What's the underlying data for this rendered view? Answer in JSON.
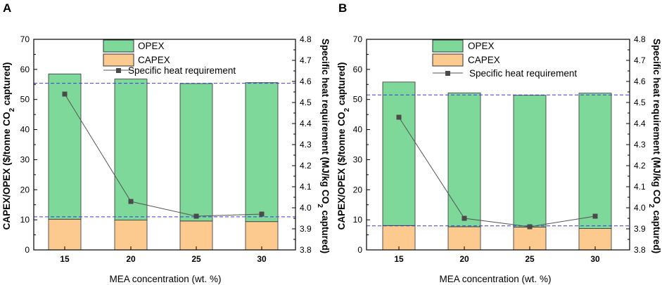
{
  "colors": {
    "opex": "#7dd89a",
    "capex": "#fcc98f",
    "bar_stroke": "#333333",
    "line": "#555555",
    "marker": "#4a4a4a",
    "ref_line": "#3b3bd6"
  },
  "chart_data": [
    {
      "panel": "A",
      "type": "bar",
      "stacked": true,
      "categories": [
        "15",
        "20",
        "25",
        "30"
      ],
      "xlabel": "MEA concentration (wt. %)",
      "ylabel": "CAPEX/OPEX ($/tonne CO2 captured)",
      "ylabel_parts": {
        "before": "CAPEX/OPEX ($/tonne CO",
        "sub": "2",
        "after": " captured)"
      },
      "y2label": "Specific heat requirement (MJ/kg CO2 captured)",
      "y2label_parts": {
        "before": "Specific heat requirement (MJ/kg CO",
        "sub": "2",
        "after": " captured)"
      },
      "ylim": [
        0,
        70
      ],
      "yticks": [
        "0",
        "10",
        "20",
        "30",
        "40",
        "50",
        "60",
        "70"
      ],
      "y2lim": [
        3.8,
        4.8
      ],
      "y2ticks": [
        "3.8",
        "3.9",
        "4.0",
        "4.1",
        "4.2",
        "4.3",
        "4.4",
        "4.5",
        "4.6",
        "4.7",
        "4.8"
      ],
      "series": [
        {
          "name": "CAPEX",
          "values": [
            10.2,
            9.9,
            9.6,
            9.4
          ]
        },
        {
          "name": "OPEX",
          "values": [
            48.3,
            46.9,
            45.7,
            46.2
          ]
        }
      ],
      "line_series": {
        "name": "Specific heat requirement",
        "axis": "right",
        "values": [
          4.54,
          4.03,
          3.96,
          3.97
        ]
      },
      "ref_lines": [
        55.4,
        11.0
      ],
      "legend": [
        "OPEX",
        "CAPEX",
        "Specific heat requirement"
      ]
    },
    {
      "panel": "B",
      "type": "bar",
      "stacked": true,
      "categories": [
        "15",
        "20",
        "25",
        "30"
      ],
      "xlabel": "MEA concentration (wt. %)",
      "ylabel": "CAPEX/OPEX ($/tonne CO2 captured)",
      "ylabel_parts": {
        "before": "CAPEX/OPEX ($/tonne CO",
        "sub": "2",
        "after": " captured)"
      },
      "y2label": "Specific heat requirement (MJ/kg CO2 captured)",
      "y2label_parts": {
        "before": "Specific heat requirement (MJ/kg CO",
        "sub": "2",
        "after": " captured)"
      },
      "ylim": [
        0,
        70
      ],
      "yticks": [
        "0",
        "10",
        "20",
        "30",
        "40",
        "50",
        "60",
        "70"
      ],
      "y2lim": [
        3.8,
        4.8
      ],
      "y2ticks": [
        "3.8",
        "3.9",
        "4.0",
        "4.1",
        "4.2",
        "4.3",
        "4.4",
        "4.5",
        "4.6",
        "4.7",
        "4.8"
      ],
      "series": [
        {
          "name": "CAPEX",
          "values": [
            8.1,
            7.7,
            7.6,
            7.1
          ]
        },
        {
          "name": "OPEX",
          "values": [
            47.7,
            44.5,
            43.8,
            45.0
          ]
        }
      ],
      "line_series": {
        "name": "Specific heat requirement",
        "axis": "right",
        "values": [
          4.43,
          3.95,
          3.91,
          3.96
        ]
      },
      "ref_lines": [
        51.5,
        8.0
      ],
      "legend": [
        "OPEX",
        "CAPEX",
        "Specific heat requirement"
      ]
    }
  ]
}
